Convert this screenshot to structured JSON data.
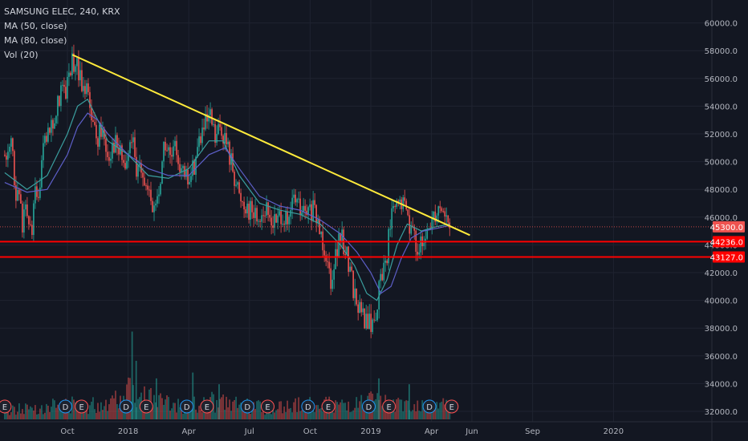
{
  "legend": {
    "symbol": "SAMSUNG ELEC, 240, KRX",
    "ma50": "MA (50, close)",
    "ma80": "MA (80, close)",
    "vol": "Vol (20)"
  },
  "colors": {
    "background": "#131722",
    "grid": "#1f2330",
    "text": "#b2b5be",
    "up": "#26a69a",
    "down": "#ef5350",
    "trendline": "#ffeb3b",
    "support": "#ff0000",
    "ma50": "#3a9e9e",
    "ma80": "#5d5fc9",
    "price_label": "#ef5350"
  },
  "chart_data": {
    "type": "candlestick",
    "ylim": [
      31000,
      61000
    ],
    "y_ticks": [
      {
        "value": 32000,
        "label": "32000.0"
      },
      {
        "value": 34000,
        "label": "34000.0"
      },
      {
        "value": 36000,
        "label": "36000.0"
      },
      {
        "value": 38000,
        "label": "38000.0"
      },
      {
        "value": 40000,
        "label": "40000.0"
      },
      {
        "value": 42000,
        "label": "42000.0"
      },
      {
        "value": 44000,
        "label": "44000.0"
      },
      {
        "value": 46000,
        "label": "46000.0"
      },
      {
        "value": 48000,
        "label": "48000.0"
      },
      {
        "value": 50000,
        "label": "50000.0"
      },
      {
        "value": 52000,
        "label": "52000.0"
      },
      {
        "value": 54000,
        "label": "54000.0"
      },
      {
        "value": 56000,
        "label": "56000.0"
      },
      {
        "value": 58000,
        "label": "58000.0"
      },
      {
        "value": 60000,
        "label": "60000.0"
      }
    ],
    "x_ticks": [
      {
        "label": "Oct",
        "t": 0.0
      },
      {
        "label": "2018",
        "t": 3.0
      },
      {
        "label": "Apr",
        "t": 6.0
      },
      {
        "label": "Jul",
        "t": 9.0
      },
      {
        "label": "Oct",
        "t": 12.0
      },
      {
        "label": "2019",
        "t": 15.0
      },
      {
        "label": "Apr",
        "t": 18.0
      },
      {
        "label": "Jun",
        "t": 20.0
      },
      {
        "label": "Sep",
        "t": 23.0
      },
      {
        "label": "2020",
        "t": 27.0
      }
    ],
    "price_path": [
      [
        -3.1,
        50500
      ],
      [
        -2.8,
        51300
      ],
      [
        -2.6,
        48500
      ],
      [
        -2.4,
        47000
      ],
      [
        -2.2,
        45500
      ],
      [
        -2.0,
        47000
      ],
      [
        -1.8,
        44500
      ],
      [
        -1.6,
        48500
      ],
      [
        -1.4,
        47000
      ],
      [
        -1.2,
        50500
      ],
      [
        -1.0,
        51800
      ],
      [
        -0.6,
        53000
      ],
      [
        -0.3,
        55500
      ],
      [
        -0.1,
        54500
      ],
      [
        0.2,
        57000
      ],
      [
        0.4,
        57200
      ],
      [
        0.6,
        56000
      ],
      [
        0.9,
        55500
      ],
      [
        1.2,
        53500
      ],
      [
        1.4,
        51500
      ],
      [
        1.7,
        52500
      ],
      [
        2.0,
        50500
      ],
      [
        2.3,
        51500
      ],
      [
        2.6,
        50500
      ],
      [
        2.9,
        49500
      ],
      [
        3.2,
        52000
      ],
      [
        3.4,
        48500
      ],
      [
        3.6,
        50500
      ],
      [
        3.9,
        48000
      ],
      [
        4.2,
        46500
      ],
      [
        4.5,
        47500
      ],
      [
        4.8,
        51500
      ],
      [
        5.1,
        50000
      ],
      [
        5.4,
        51000
      ],
      [
        5.7,
        49000
      ],
      [
        6.0,
        48500
      ],
      [
        6.3,
        50000
      ],
      [
        6.5,
        51500
      ],
      [
        6.8,
        52500
      ],
      [
        7.1,
        53000
      ],
      [
        7.3,
        51500
      ],
      [
        7.6,
        52500
      ],
      [
        7.9,
        51000
      ],
      [
        8.2,
        49500
      ],
      [
        8.5,
        47500
      ],
      [
        8.8,
        47000
      ],
      [
        9.1,
        46500
      ],
      [
        9.4,
        46000
      ],
      [
        9.7,
        46500
      ],
      [
        10.0,
        46000
      ],
      [
        10.3,
        45500
      ],
      [
        10.6,
        46500
      ],
      [
        10.9,
        45000
      ],
      [
        11.2,
        47500
      ],
      [
        11.5,
        46500
      ],
      [
        11.8,
        46000
      ],
      [
        12.1,
        46500
      ],
      [
        12.4,
        45500
      ],
      [
        12.6,
        44500
      ],
      [
        12.8,
        43500
      ],
      [
        13.0,
        41500
      ],
      [
        13.2,
        43000
      ],
      [
        13.5,
        44500
      ],
      [
        13.8,
        43500
      ],
      [
        14.0,
        42000
      ],
      [
        14.2,
        40500
      ],
      [
        14.4,
        39500
      ],
      [
        14.6,
        38800
      ],
      [
        14.8,
        38500
      ],
      [
        15.0,
        38200
      ],
      [
        15.2,
        38800
      ],
      [
        15.5,
        41500
      ],
      [
        15.8,
        43500
      ],
      [
        16.0,
        46000
      ],
      [
        16.2,
        46500
      ],
      [
        16.5,
        47000
      ],
      [
        16.8,
        46500
      ],
      [
        17.0,
        45000
      ],
      [
        17.3,
        44000
      ],
      [
        17.6,
        43500
      ],
      [
        17.9,
        45500
      ],
      [
        18.2,
        46500
      ],
      [
        18.5,
        47000
      ],
      [
        18.7,
        46000
      ],
      [
        18.9,
        45300
      ]
    ],
    "volume_ylim": [
      0,
      20
    ],
    "volume_path": [
      [
        -3.1,
        2
      ],
      [
        -2.0,
        2.5
      ],
      [
        -1.0,
        3
      ],
      [
        0.0,
        3.5
      ],
      [
        1.0,
        3
      ],
      [
        2.0,
        4
      ],
      [
        3.0,
        7
      ],
      [
        4.0,
        5
      ],
      [
        5.0,
        3.5
      ],
      [
        6.0,
        3
      ],
      [
        7.0,
        4
      ],
      [
        8.0,
        3.5
      ],
      [
        9.0,
        3
      ],
      [
        10.0,
        2.5
      ],
      [
        11.0,
        3
      ],
      [
        12.0,
        3.5
      ],
      [
        13.0,
        3.5
      ],
      [
        14.0,
        3
      ],
      [
        15.0,
        4
      ],
      [
        16.0,
        3.5
      ],
      [
        17.0,
        3
      ],
      [
        18.0,
        3.5
      ],
      [
        18.9,
        3
      ]
    ],
    "volume_spikes": [
      {
        "t": 3.2,
        "value": 15
      },
      {
        "t": 3.4,
        "value": 10
      },
      {
        "t": 4.4,
        "value": 7
      },
      {
        "t": 6.2,
        "value": 8
      },
      {
        "t": 7.5,
        "value": 6
      },
      {
        "t": 15.4,
        "value": 7
      },
      {
        "t": 16.9,
        "value": 6
      }
    ],
    "ma50": [
      [
        -3.1,
        49200
      ],
      [
        -2.0,
        48000
      ],
      [
        -1.0,
        49000
      ],
      [
        0.0,
        52000
      ],
      [
        0.5,
        54000
      ],
      [
        1.0,
        54500
      ],
      [
        1.5,
        53000
      ],
      [
        2.0,
        51500
      ],
      [
        3.0,
        50500
      ],
      [
        4.0,
        49000
      ],
      [
        5.0,
        48800
      ],
      [
        6.0,
        49500
      ],
      [
        7.0,
        51500
      ],
      [
        7.7,
        51500
      ],
      [
        8.5,
        49000
      ],
      [
        9.5,
        47000
      ],
      [
        10.5,
        46500
      ],
      [
        11.5,
        46200
      ],
      [
        12.5,
        45500
      ],
      [
        13.5,
        44000
      ],
      [
        14.2,
        42500
      ],
      [
        14.8,
        40500
      ],
      [
        15.3,
        40000
      ],
      [
        15.8,
        41500
      ],
      [
        16.3,
        44000
      ],
      [
        16.8,
        45500
      ],
      [
        17.5,
        45000
      ],
      [
        18.2,
        45300
      ],
      [
        18.9,
        45500
      ]
    ],
    "ma80": [
      [
        -3.1,
        48500
      ],
      [
        -2.0,
        47800
      ],
      [
        -1.0,
        48000
      ],
      [
        0.0,
        50500
      ],
      [
        0.5,
        52500
      ],
      [
        1.0,
        53500
      ],
      [
        1.5,
        53000
      ],
      [
        2.0,
        52000
      ],
      [
        3.0,
        50500
      ],
      [
        4.0,
        49500
      ],
      [
        5.0,
        49000
      ],
      [
        6.0,
        49000
      ],
      [
        7.0,
        50500
      ],
      [
        7.8,
        51000
      ],
      [
        8.5,
        49500
      ],
      [
        9.5,
        47500
      ],
      [
        10.5,
        46800
      ],
      [
        11.5,
        46500
      ],
      [
        12.5,
        45800
      ],
      [
        13.5,
        44800
      ],
      [
        14.3,
        43500
      ],
      [
        15.0,
        42000
      ],
      [
        15.5,
        40500
      ],
      [
        16.0,
        41000
      ],
      [
        16.5,
        43000
      ],
      [
        17.0,
        44500
      ],
      [
        17.6,
        45000
      ],
      [
        18.3,
        45200
      ],
      [
        18.9,
        45400
      ]
    ],
    "trendline": {
      "from": [
        0.25,
        57700
      ],
      "to": [
        19.9,
        44700
      ]
    },
    "current_price": {
      "value": 45300,
      "label": "45300.0"
    },
    "support_lines": [
      {
        "value": 44236,
        "label": "44236.0"
      },
      {
        "value": 43127,
        "label": "43127.0"
      }
    ],
    "event_markers": [
      {
        "t": -3.1,
        "label": "E",
        "kind": "earnings"
      },
      {
        "t": -0.1,
        "label": "D",
        "kind": "dividend"
      },
      {
        "t": 0.7,
        "label": "E",
        "kind": "earnings"
      },
      {
        "t": 2.9,
        "label": "D",
        "kind": "dividend"
      },
      {
        "t": 3.9,
        "label": "E",
        "kind": "earnings"
      },
      {
        "t": 5.9,
        "label": "D",
        "kind": "dividend"
      },
      {
        "t": 6.9,
        "label": "E",
        "kind": "earnings"
      },
      {
        "t": 8.9,
        "label": "D",
        "kind": "dividend"
      },
      {
        "t": 9.9,
        "label": "E",
        "kind": "earnings"
      },
      {
        "t": 11.9,
        "label": "D",
        "kind": "dividend"
      },
      {
        "t": 12.9,
        "label": "E",
        "kind": "earnings"
      },
      {
        "t": 14.9,
        "label": "D",
        "kind": "dividend"
      },
      {
        "t": 15.9,
        "label": "E",
        "kind": "earnings"
      },
      {
        "t": 17.9,
        "label": "D",
        "kind": "dividend"
      },
      {
        "t": 19.0,
        "label": "E",
        "kind": "earnings"
      }
    ]
  }
}
